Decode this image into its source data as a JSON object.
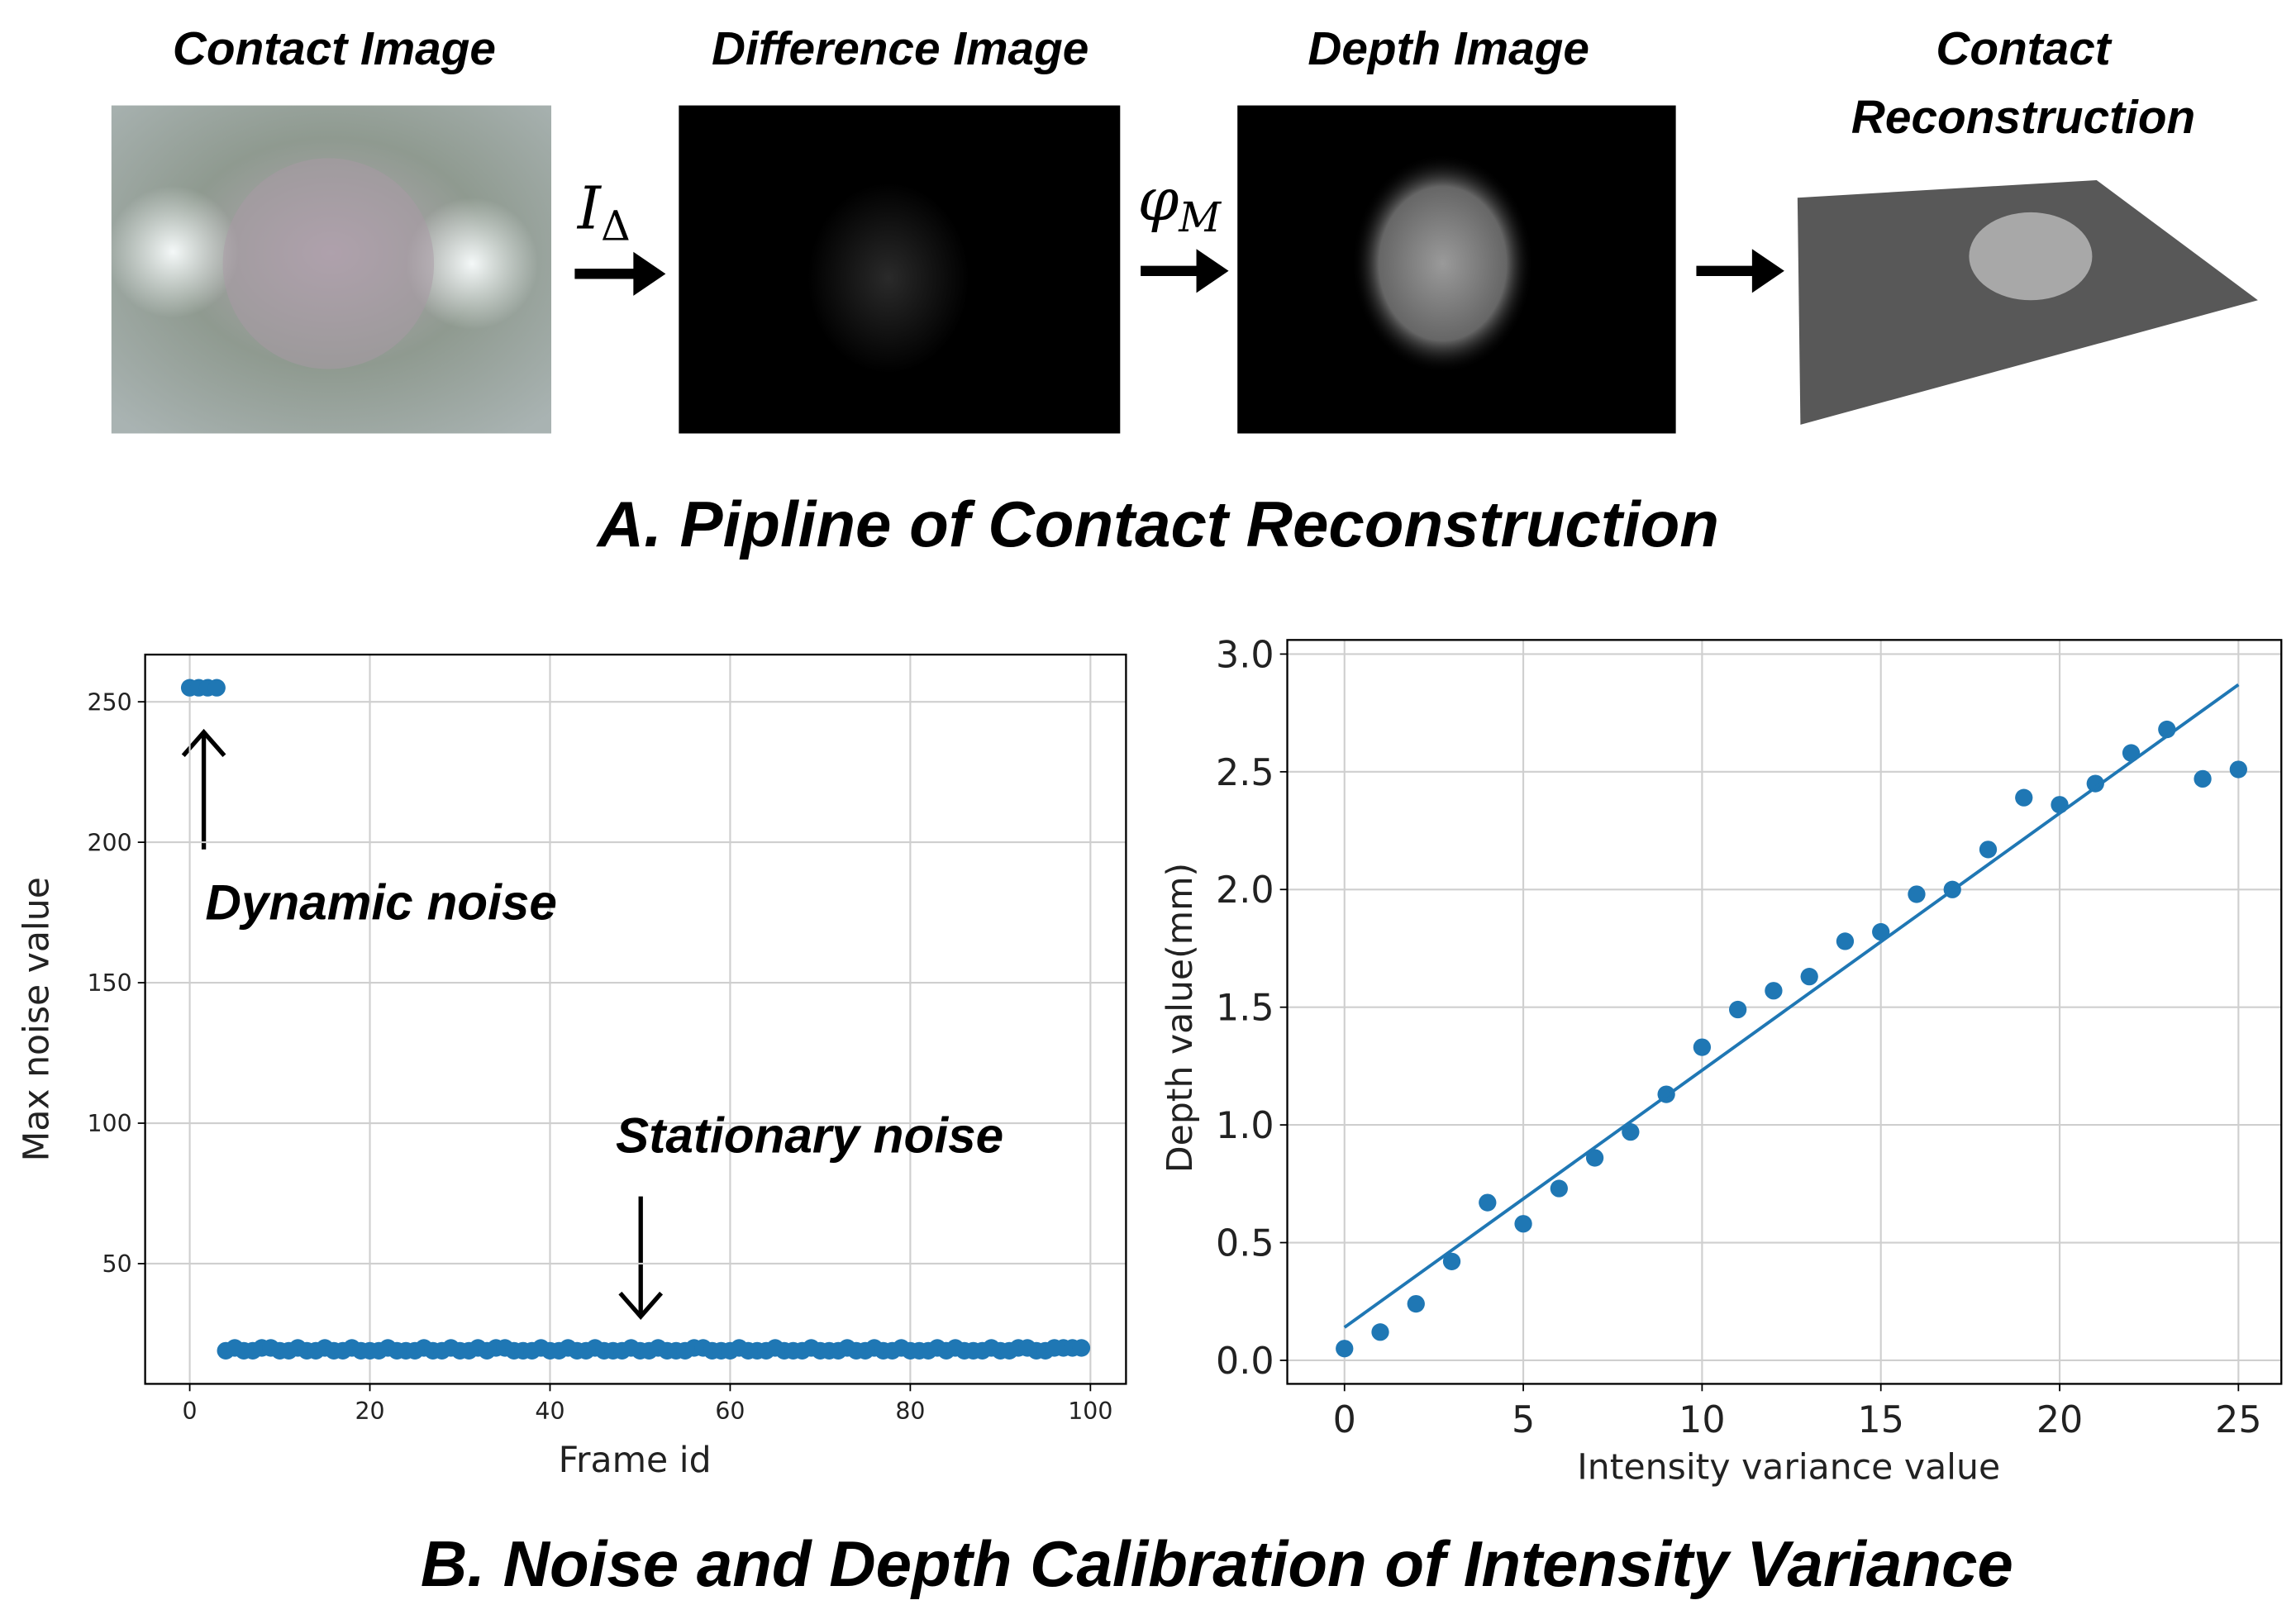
{
  "panel_a": {
    "titles": [
      "Contact Image",
      "Difference Image",
      "Depth Image",
      [
        "Contact",
        "Reconstruction"
      ]
    ],
    "operators": [
      {
        "symbol": "I",
        "sub": "Δ"
      },
      {
        "symbol": "φ",
        "sub": "M"
      }
    ],
    "caption": "A. Pipline of Contact Reconstruction"
  },
  "panel_b": {
    "caption": "B. Noise and Depth Calibration of Intensity Variance"
  },
  "chart_data": [
    {
      "type": "scatter",
      "xlabel": "Frame id",
      "ylabel": "Max noise value",
      "xlim": [
        -4.95,
        103.95
      ],
      "ylim": [
        7.2,
        266.8
      ],
      "xticks": [
        0,
        20,
        40,
        60,
        80,
        100
      ],
      "yticks": [
        50,
        100,
        150,
        200,
        250
      ],
      "grid": true,
      "annotations": [
        {
          "text": "Dynamic noise"
        },
        {
          "text": "Stationary noise"
        }
      ],
      "series": [
        {
          "kind": "scatter",
          "color": "#1f77b4",
          "x": [
            0,
            1,
            2,
            3,
            4,
            5,
            6,
            7,
            8,
            9,
            10,
            11,
            12,
            13,
            14,
            15,
            16,
            17,
            18,
            19,
            20,
            21,
            22,
            23,
            24,
            25,
            26,
            27,
            28,
            29,
            30,
            31,
            32,
            33,
            34,
            35,
            36,
            37,
            38,
            39,
            40,
            41,
            42,
            43,
            44,
            45,
            46,
            47,
            48,
            49,
            50,
            51,
            52,
            53,
            54,
            55,
            56,
            57,
            58,
            59,
            60,
            61,
            62,
            63,
            64,
            65,
            66,
            67,
            68,
            69,
            70,
            71,
            72,
            73,
            74,
            75,
            76,
            77,
            78,
            79,
            80,
            81,
            82,
            83,
            84,
            85,
            86,
            87,
            88,
            89,
            90,
            91,
            92,
            93,
            94,
            95,
            96,
            97,
            98,
            99
          ],
          "values": [
            255,
            255,
            255,
            255,
            19,
            20,
            19,
            19,
            20,
            20,
            19,
            19,
            20,
            19,
            19,
            20,
            19,
            19,
            20,
            19,
            19,
            19,
            20,
            19,
            19,
            19,
            20,
            19,
            19,
            20,
            19,
            19,
            20,
            19,
            20,
            20,
            19,
            19,
            19,
            20,
            19,
            19,
            20,
            19,
            19,
            20,
            19,
            19,
            19,
            20,
            19,
            19,
            20,
            19,
            19,
            19,
            20,
            20,
            19,
            19,
            19,
            20,
            19,
            19,
            19,
            20,
            19,
            19,
            19,
            20,
            19,
            19,
            19,
            20,
            19,
            19,
            20,
            19,
            19,
            20,
            19,
            19,
            19,
            20,
            19,
            20,
            19,
            19,
            19,
            20,
            19,
            19,
            20,
            20,
            19,
            19,
            20,
            20,
            20,
            20
          ]
        }
      ]
    },
    {
      "type": "scatter",
      "xlabel": "Intensity variance value",
      "ylabel": "Depth value(mm)",
      "xlim": [
        -1.6,
        26.2
      ],
      "ylim": [
        -0.1,
        3.06
      ],
      "xticks": [
        0,
        5,
        10,
        15,
        20,
        25
      ],
      "yticks": [
        {
          "value": 0,
          "label": "0.0"
        },
        0.5,
        {
          "value": 1,
          "label": "1.0"
        },
        1.5,
        {
          "value": 2,
          "label": "2.0"
        },
        2.5,
        {
          "value": 3,
          "label": "3.0"
        }
      ],
      "grid": true,
      "series": [
        {
          "kind": "scatter",
          "color": "#1f77b4",
          "x": [
            0,
            1,
            2,
            3,
            4,
            5,
            6,
            7,
            8,
            9,
            10,
            11,
            12,
            13,
            14,
            15,
            16,
            17,
            18,
            19,
            20,
            21,
            22,
            23,
            24,
            25
          ],
          "values": [
            0.05,
            0.12,
            0.24,
            0.42,
            0.67,
            0.58,
            0.73,
            0.86,
            0.97,
            1.13,
            1.33,
            1.49,
            1.57,
            1.63,
            1.78,
            1.82,
            1.98,
            2.0,
            2.17,
            2.39,
            2.36,
            2.45,
            2.58,
            2.68,
            2.47,
            2.51
          ]
        },
        {
          "kind": "line",
          "color": "#1f77b4",
          "x": [
            0,
            25
          ],
          "values": [
            0.14,
            2.87
          ]
        }
      ]
    }
  ]
}
